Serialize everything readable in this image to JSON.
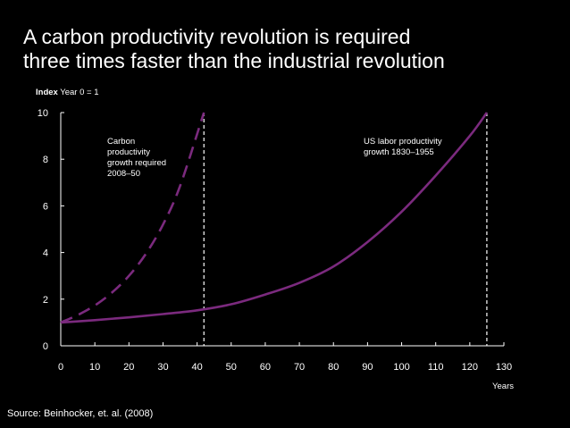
{
  "chart_data": {
    "type": "line",
    "title_lines": [
      "A carbon productivity revolution is required",
      "three times faster than the industrial revolution"
    ],
    "ylabel_bold": "Index",
    "ylabel_rest": " Year 0 = 1",
    "xlabel": "Years",
    "xlim": [
      0,
      130
    ],
    "ylim": [
      0,
      10
    ],
    "xticks": [
      0,
      10,
      20,
      30,
      40,
      50,
      60,
      70,
      80,
      90,
      100,
      110,
      120,
      130
    ],
    "yticks": [
      0,
      2,
      4,
      6,
      8,
      10
    ],
    "series": [
      {
        "name": "Carbon productivity growth required 2008–50",
        "annotation_lines": [
          "Carbon",
          "productivity",
          "growth required",
          "2008–50"
        ],
        "style": "dashed",
        "x": [
          0,
          5,
          10,
          15,
          20,
          25,
          30,
          35,
          42
        ],
        "y": [
          1.0,
          1.32,
          1.73,
          2.28,
          3.0,
          3.95,
          5.2,
          6.85,
          10.0
        ]
      },
      {
        "name": "US labor productivity growth 1830–1955",
        "annotation_lines": [
          "US labor productivity",
          "growth 1830–1955"
        ],
        "style": "solid",
        "x": [
          0,
          10,
          20,
          30,
          40,
          50,
          60,
          70,
          80,
          90,
          100,
          110,
          120,
          125
        ],
        "y": [
          1.0,
          1.1,
          1.22,
          1.36,
          1.52,
          1.78,
          2.2,
          2.7,
          3.4,
          4.45,
          5.75,
          7.3,
          9.0,
          10.0
        ]
      }
    ],
    "reference_lines_x": [
      42,
      125
    ],
    "colors": {
      "line": "#7b2a7e",
      "axis": "#ffffff",
      "background": "#000000"
    }
  },
  "source": "Source: Beinhocker, et. al. (2008)"
}
